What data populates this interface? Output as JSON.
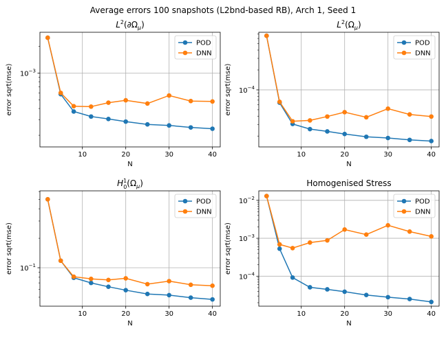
{
  "figure": {
    "suptitle": "Average errors 100 snapshots (L2bnd-based RB), Arch 1, Seed 1"
  },
  "colors": {
    "POD": "#1f77b4",
    "DNN": "#ff7f0e",
    "grid": "#b0b0b0"
  },
  "chart_data": [
    {
      "type": "line",
      "title": "L²(∂Ω_μ)",
      "title_parts": {
        "base": "L",
        "sup": "2",
        "rest": "(∂Ω",
        "sub": "μ",
        "end": ")"
      },
      "xlabel": "N",
      "ylabel": "error sqrt(mse)",
      "yscale": "log",
      "xlim": [
        0.2,
        41.8
      ],
      "ylim": [
        0.000148,
        0.00288
      ],
      "xticks": [
        10,
        20,
        30,
        40
      ],
      "yticks": [
        {
          "value": 0.001,
          "base": "10",
          "exp": "−3"
        }
      ],
      "grid": true,
      "legend": "top-right",
      "x": [
        2,
        5,
        8,
        12,
        16,
        20,
        25,
        30,
        35,
        40
      ],
      "series": [
        {
          "name": "POD",
          "values": [
            0.0025,
            0.00058,
            0.00037,
            0.000325,
            0.000305,
            0.000285,
            0.000265,
            0.000258,
            0.000245,
            0.000237
          ]
        },
        {
          "name": "DNN",
          "values": [
            0.0025,
            0.0006,
            0.000425,
            0.00042,
            0.000465,
            0.000495,
            0.000455,
            0.00056,
            0.000485,
            0.00048
          ]
        }
      ]
    },
    {
      "type": "line",
      "title": "L²(Ω_μ)",
      "title_parts": {
        "base": "L",
        "sup": "2",
        "rest": "(Ω",
        "sub": "μ",
        "end": ")"
      },
      "xlabel": "N",
      "ylabel": "error sqrt(mse)",
      "yscale": "log",
      "xlim": [
        0.2,
        41.8
      ],
      "ylim": [
        1.37e-05,
        0.000745
      ],
      "xticks": [
        10,
        20,
        30,
        40
      ],
      "yticks": [
        {
          "value": 0.0001,
          "base": "10",
          "exp": "−4"
        }
      ],
      "grid": true,
      "legend": "top-right",
      "x": [
        2,
        5,
        8,
        12,
        16,
        20,
        25,
        30,
        35,
        40
      ],
      "series": [
        {
          "name": "POD",
          "values": [
            0.00066,
            6.4e-05,
            3.05e-05,
            2.55e-05,
            2.35e-05,
            2.15e-05,
            1.95e-05,
            1.87e-05,
            1.75e-05,
            1.68e-05
          ]
        },
        {
          "name": "DNN",
          "values": [
            0.00066,
            6.6e-05,
            3.35e-05,
            3.45e-05,
            3.95e-05,
            4.6e-05,
            3.85e-05,
            5.2e-05,
            4.25e-05,
            3.95e-05
          ]
        }
      ]
    },
    {
      "type": "line",
      "title": "H¹₀(Ω_μ)",
      "title_parts": {
        "base": "H",
        "sup": "1",
        "subscript_under": "0",
        "rest": "(Ω",
        "sub": "μ",
        "end": ")"
      },
      "xlabel": "N",
      "ylabel": "error sqrt(mse)",
      "yscale": "log",
      "xlim": [
        0.2,
        41.8
      ],
      "ylim": [
        0.0405,
        0.61
      ],
      "xticks": [
        10,
        20,
        30,
        40
      ],
      "yticks": [
        {
          "value": 0.1,
          "base": "10",
          "exp": "−1"
        }
      ],
      "grid": true,
      "legend": "top-right",
      "x": [
        2,
        5,
        8,
        12,
        16,
        20,
        25,
        30,
        35,
        40
      ],
      "series": [
        {
          "name": "POD",
          "values": [
            0.5,
            0.118,
            0.079,
            0.07,
            0.064,
            0.059,
            0.054,
            0.0525,
            0.0495,
            0.0475
          ]
        },
        {
          "name": "DNN",
          "values": [
            0.5,
            0.118,
            0.081,
            0.077,
            0.075,
            0.078,
            0.068,
            0.073,
            0.067,
            0.0655
          ]
        }
      ]
    },
    {
      "type": "line",
      "title": "Homogenised Stress",
      "xlabel": "N",
      "ylabel": "error sqrt(mse)",
      "yscale": "log",
      "xlim": [
        0.2,
        41.8
      ],
      "ylim": [
        1.62e-05,
        0.0178
      ],
      "xticks": [
        10,
        20,
        30,
        40
      ],
      "yticks": [
        {
          "value": 0.0001,
          "base": "10",
          "exp": "−4"
        },
        {
          "value": 0.001,
          "base": "10",
          "exp": "−3"
        },
        {
          "value": 0.01,
          "base": "10",
          "exp": "−2"
        }
      ],
      "grid": true,
      "legend": "top-right",
      "x": [
        2,
        5,
        8,
        12,
        16,
        20,
        25,
        30,
        35,
        40
      ],
      "series": [
        {
          "name": "POD",
          "values": [
            0.013,
            0.00053,
            9.2e-05,
            5.1e-05,
            4.5e-05,
            3.9e-05,
            3.2e-05,
            2.8e-05,
            2.5e-05,
            2.1e-05
          ]
        },
        {
          "name": "DNN",
          "values": [
            0.013,
            0.00069,
            0.00055,
            0.00077,
            0.00088,
            0.0017,
            0.00125,
            0.0022,
            0.0015,
            0.00112
          ]
        }
      ]
    }
  ]
}
